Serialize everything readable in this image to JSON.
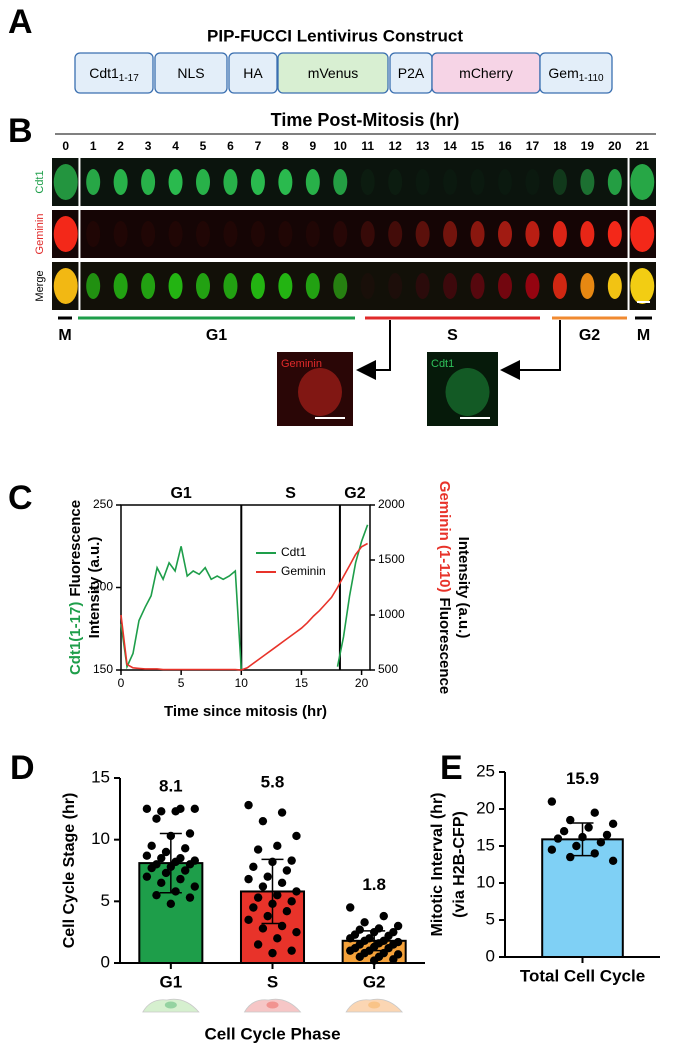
{
  "panel_a": {
    "label": "A",
    "title": "PIP-FUCCI Lentivirus Construct",
    "segments": [
      {
        "name": "Cdt1",
        "sub": "1-17",
        "color": "#e3eef9"
      },
      {
        "name": "NLS",
        "color": "#e3eef9"
      },
      {
        "name": "HA",
        "color": "#e3eef9"
      },
      {
        "name": "mVenus",
        "color": "#d8efd2"
      },
      {
        "name": "P2A",
        "color": "#e3eef9"
      },
      {
        "name": "mCherry",
        "color": "#f6d4e6"
      },
      {
        "name": "Gem",
        "sub": "1-110",
        "color": "#e3eef9"
      }
    ]
  },
  "panel_b": {
    "label": "B",
    "title": "Time Post-Mitosis (hr)",
    "times": [
      0,
      1,
      2,
      3,
      4,
      5,
      6,
      7,
      8,
      9,
      10,
      11,
      12,
      13,
      14,
      15,
      16,
      17,
      18,
      19,
      20,
      21
    ],
    "channels": [
      {
        "name": "Cdt1",
        "color": "#1e9e4a"
      },
      {
        "name": "Geminin",
        "color": "#e02a2a"
      },
      {
        "name": "Merge",
        "color": "#000000"
      }
    ],
    "phases": [
      {
        "name": "M",
        "color": "#000000"
      },
      {
        "name": "G1",
        "color": "#1e9e4a"
      },
      {
        "name": "S",
        "color": "#e02a2a"
      },
      {
        "name": "G2",
        "color": "#f08a30"
      },
      {
        "name": "M",
        "color": "#000000"
      }
    ],
    "insets": [
      {
        "name": "Geminin",
        "color": "#e02a2a"
      },
      {
        "name": "Cdt1",
        "color": "#2fc05a"
      }
    ]
  },
  "chart_data": [
    {
      "type": "line",
      "panel": "C",
      "x": [
        0,
        0.5,
        1,
        1.5,
        2,
        2.5,
        3,
        3.5,
        4,
        4.5,
        5,
        5.5,
        6,
        6.5,
        7,
        7.5,
        8,
        8.5,
        9,
        9.5,
        10,
        10.5,
        11,
        11.5,
        12,
        12.5,
        13,
        13.5,
        14,
        14.5,
        15,
        15.5,
        16,
        16.5,
        17,
        17.5,
        18,
        18.5,
        19,
        19.5,
        20,
        20.5
      ],
      "xlim": [
        0,
        20.7
      ],
      "xticks": [
        0,
        5,
        10,
        15,
        20
      ],
      "ylim": [
        150,
        250
      ],
      "yticks": [
        150,
        200,
        250
      ],
      "y2lim": [
        500,
        2000
      ],
      "y2ticks": [
        500,
        1000,
        1500,
        2000
      ],
      "phases": [
        "G1",
        "S",
        "G2"
      ],
      "phase_boundaries": [
        10,
        18.2
      ],
      "xlabel": "Time since mitosis (hr)",
      "ylabel": {
        "colored": "Cdt1(1-17)",
        "rest": "Fluorescence",
        "line2": "Intensity (a.u.)",
        "color": "#1e9e4a"
      },
      "y2label": {
        "colored": "Geminin (1-110)",
        "rest": "Fluorescence",
        "line2": "Intensity (a.u.)",
        "color": "#e8332a"
      },
      "series": [
        {
          "name": "Cdt1",
          "color": "#1e9e4a",
          "values": [
            178,
            152,
            160,
            180,
            188,
            195,
            212,
            205,
            215,
            210,
            225,
            207,
            210,
            208,
            212,
            205,
            207,
            205,
            207,
            210,
            150,
            null,
            null,
            null,
            null,
            null,
            null,
            null,
            null,
            null,
            null,
            null,
            null,
            null,
            null,
            null,
            152,
            170,
            195,
            215,
            228,
            238
          ]
        },
        {
          "name": "Geminin",
          "color": "#e8332a",
          "axis": "y2",
          "values": [
            1000,
            550,
            520,
            515,
            510,
            510,
            510,
            505,
            505,
            505,
            505,
            505,
            505,
            505,
            505,
            505,
            505,
            505,
            505,
            505,
            500,
            520,
            560,
            600,
            640,
            680,
            720,
            760,
            800,
            840,
            880,
            930,
            990,
            1040,
            1100,
            1160,
            1250,
            1350,
            1450,
            1550,
            1620,
            1650
          ]
        }
      ]
    },
    {
      "type": "bar",
      "panel": "D",
      "categories": [
        "G1",
        "S",
        "G2"
      ],
      "values": [
        8.1,
        5.8,
        1.8
      ],
      "errors": [
        2.4,
        2.6,
        0.8
      ],
      "colors": [
        "#1e9e4a",
        "#e8332a",
        "#f5a23a"
      ],
      "points": [
        [
          12.5,
          12.5,
          12.3,
          12.5,
          12.3,
          11.7,
          10.5,
          10.3,
          9.5,
          9.3,
          9.0,
          8.7,
          8.5,
          8.5,
          8.3,
          8.2,
          8.0,
          8.0,
          7.8,
          7.7,
          7.5,
          7.3,
          7.0,
          6.8,
          6.5,
          6.2,
          5.8,
          5.5,
          5.3,
          4.8
        ],
        [
          12.8,
          12.2,
          11.5,
          10.3,
          9.5,
          9.2,
          8.3,
          8.2,
          7.8,
          7.5,
          7.0,
          6.8,
          6.5,
          6.2,
          5.8,
          5.5,
          5.3,
          5.0,
          4.8,
          4.5,
          4.2,
          3.8,
          3.5,
          3.0,
          2.8,
          2.5,
          2.0,
          1.5,
          1.0,
          0.8
        ],
        [
          4.5,
          3.8,
          3.3,
          3.0,
          2.8,
          2.7,
          2.5,
          2.5,
          2.3,
          2.2,
          2.0,
          2.0,
          1.8,
          1.8,
          1.7,
          1.6,
          1.5,
          1.5,
          1.3,
          1.2,
          1.2,
          1.0,
          1.0,
          0.8,
          0.8,
          0.7,
          0.5,
          0.5,
          0.3,
          0.2
        ]
      ],
      "ylim": [
        0,
        15
      ],
      "yticks": [
        0,
        5,
        10,
        15
      ],
      "ylabel": [
        "Cell Cycle Stage (hr)"
      ],
      "xlabel": "Cell Cycle Phase"
    },
    {
      "type": "bar",
      "panel": "E",
      "categories": [
        "Total Cell Cycle"
      ],
      "values": [
        15.9
      ],
      "errors": [
        2.2
      ],
      "colors": [
        "#7fd0f5"
      ],
      "points": [
        [
          21,
          19.5,
          18.5,
          18,
          17.5,
          17,
          16.5,
          16.2,
          16,
          15.5,
          15,
          14.5,
          14,
          13.5,
          13
        ]
      ],
      "ylim": [
        0,
        25
      ],
      "yticks": [
        0,
        5,
        10,
        15,
        20,
        25
      ],
      "ylabel": [
        "Mitotic Interval (hr)",
        "(via H2B-CFP)"
      ]
    }
  ]
}
